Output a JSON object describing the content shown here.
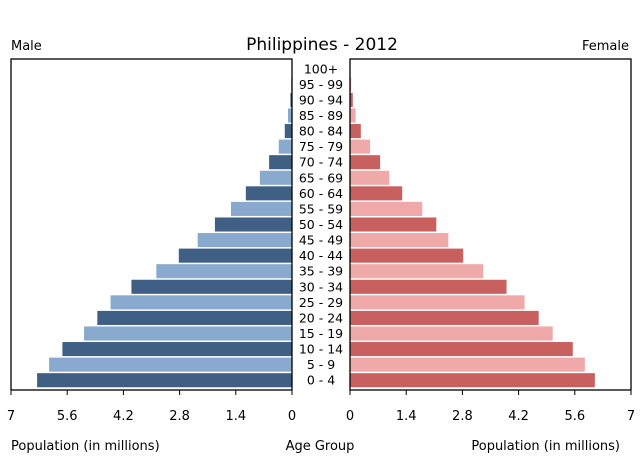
{
  "chart_data": {
    "type": "bar",
    "title": "Philippines - 2012",
    "left_label": "Male",
    "right_label": "Female",
    "xlabel_left": "Population (in millions)",
    "xlabel_center": "Age Group",
    "xlabel_right": "Population (in millions)",
    "xlim": [
      0,
      7
    ],
    "ticks_left": [
      "7",
      "5.6",
      "4.2",
      "2.8",
      "1.4",
      "0"
    ],
    "ticks_right": [
      "0",
      "1.4",
      "2.8",
      "4.2",
      "5.6",
      "7"
    ],
    "tick_values": [
      0,
      1.4,
      2.8,
      4.2,
      5.6,
      7
    ],
    "grid": false,
    "categories": [
      "100+",
      "95 - 99",
      "90 - 94",
      "85 - 89",
      "80 - 84",
      "75 - 79",
      "70 - 74",
      "65 - 69",
      "60 - 64",
      "55 - 59",
      "50 - 54",
      "45 - 49",
      "40 - 44",
      "35 - 39",
      "30 - 34",
      "25 - 29",
      "20 - 24",
      "15 - 19",
      "10 - 14",
      "5 - 9",
      "0 - 4"
    ],
    "series": [
      {
        "name": "Male",
        "values": [
          0.01,
          0.02,
          0.04,
          0.1,
          0.18,
          0.33,
          0.57,
          0.8,
          1.15,
          1.52,
          1.92,
          2.35,
          2.82,
          3.38,
          4.0,
          4.52,
          4.85,
          5.18,
          5.72,
          6.05,
          6.35
        ],
        "colors": [
          "#3f5f84",
          "#89a9ce"
        ]
      },
      {
        "name": "Female",
        "values": [
          0.01,
          0.03,
          0.07,
          0.14,
          0.27,
          0.5,
          0.75,
          0.98,
          1.3,
          1.8,
          2.15,
          2.45,
          2.82,
          3.32,
          3.9,
          4.35,
          4.7,
          5.05,
          5.55,
          5.85,
          6.1
        ],
        "colors": [
          "#c96060",
          "#f0a9a9"
        ]
      }
    ]
  }
}
